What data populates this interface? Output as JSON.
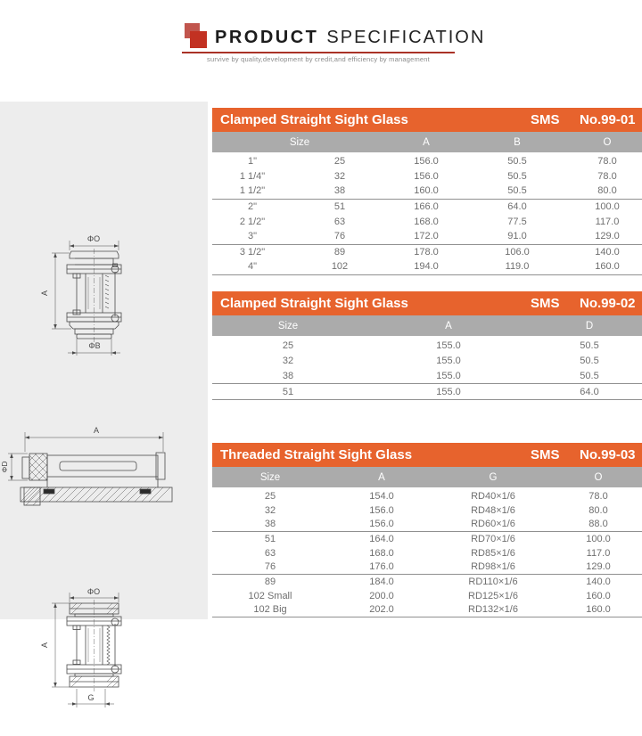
{
  "brand": {
    "name_bold": "PRODUCT",
    "name_light": "SPECIFICATION",
    "tagline": "survive by quality,development by credit,and efficiency by management"
  },
  "colors": {
    "table_title_bg": "#e7632d",
    "column_header_bg": "#ababab",
    "panel_bg": "#ededed",
    "table_text": "#6f6f6f",
    "rule_line": "#909090",
    "brand_red": "#c23122"
  },
  "tables": [
    {
      "title": "Clamped Straight Sight Glass",
      "standard": "SMS",
      "number": "No.99-01",
      "columns": [
        {
          "label": "Size",
          "span": 2
        },
        {
          "label": "A",
          "span": 1
        },
        {
          "label": "B",
          "span": 1
        },
        {
          "label": "O",
          "span": 1
        }
      ],
      "rows": [
        [
          "1\"",
          "25",
          "156.0",
          "50.5",
          "78.0"
        ],
        [
          "1 1/4\"",
          "32",
          "156.0",
          "50.5",
          "78.0"
        ],
        [
          "1 1/2\"",
          "38",
          "160.0",
          "50.5",
          "80.0"
        ],
        [
          "2\"",
          "51",
          "166.0",
          "64.0",
          "100.0"
        ],
        [
          "2 1/2\"",
          "63",
          "168.0",
          "77.5",
          "117.0"
        ],
        [
          "3\"",
          "76",
          "172.0",
          "91.0",
          "129.0"
        ],
        [
          "3 1/2\"",
          "89",
          "178.0",
          "106.0",
          "140.0"
        ],
        [
          "4\"",
          "102",
          "194.0",
          "119.0",
          "160.0"
        ]
      ],
      "separator_after_rows": [
        2,
        5
      ]
    },
    {
      "title": "Clamped Straight Sight Glass",
      "standard": "SMS",
      "number": "No.99-02",
      "columns": [
        {
          "label": "Size",
          "span": 1
        },
        {
          "label": "A",
          "span": 1
        },
        {
          "label": "D",
          "span": 1
        }
      ],
      "rows": [
        [
          "25",
          "155.0",
          "50.5"
        ],
        [
          "32",
          "155.0",
          "50.5"
        ],
        [
          "38",
          "155.0",
          "50.5"
        ],
        [
          "51",
          "155.0",
          "64.0"
        ]
      ],
      "separator_after_rows": [
        2
      ]
    },
    {
      "title": "Threaded Straight Sight Glass",
      "standard": "SMS",
      "number": "No.99-03",
      "columns": [
        {
          "label": "Size",
          "span": 1
        },
        {
          "label": "A",
          "span": 1
        },
        {
          "label": "G",
          "span": 1
        },
        {
          "label": "O",
          "span": 1
        }
      ],
      "rows": [
        [
          "25",
          "154.0",
          "RD40×1/6",
          "78.0"
        ],
        [
          "32",
          "156.0",
          "RD48×1/6",
          "80.0"
        ],
        [
          "38",
          "156.0",
          "RD60×1/6",
          "88.0"
        ],
        [
          "51",
          "164.0",
          "RD70×1/6",
          "100.0"
        ],
        [
          "63",
          "168.0",
          "RD85×1/6",
          "117.0"
        ],
        [
          "76",
          "176.0",
          "RD98×1/6",
          "129.0"
        ],
        [
          "89",
          "184.0",
          "RD110×1/6",
          "140.0"
        ],
        [
          "102 Small",
          "200.0",
          "RD125×1/6",
          "160.0"
        ],
        [
          "102 Big",
          "202.0",
          "RD132×1/6",
          "160.0"
        ]
      ],
      "separator_after_rows": [
        2,
        5
      ]
    }
  ],
  "drawings": [
    {
      "name": "clamped-sight-glass-side-view",
      "dim_top": "ΦO",
      "dim_left": "A",
      "dim_bottom": "ΦB"
    },
    {
      "name": "sight-glass-section-view",
      "dim_top": "A",
      "dim_left": "ΦD"
    },
    {
      "name": "threaded-sight-glass-side-view",
      "dim_top": "ΦO",
      "dim_left": "A",
      "dim_bottom": "G"
    }
  ]
}
